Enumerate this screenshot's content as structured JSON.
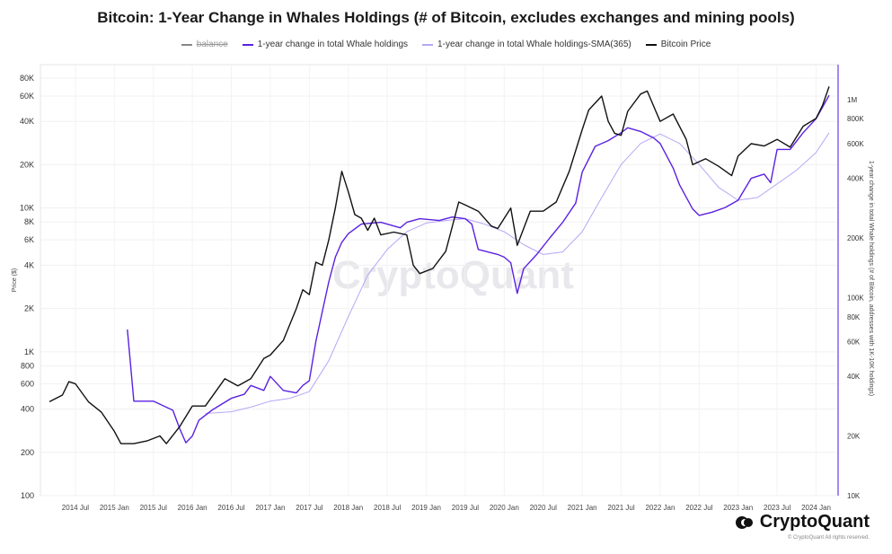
{
  "title": "Bitcoin: 1-Year Change in Whales Holdings (# of Bitcoin, excludes exchanges and mining pools)",
  "legend": [
    {
      "label": "balance",
      "color": "#888888",
      "hidden": true
    },
    {
      "label": "1-year change in total Whale holdings",
      "color": "#5b21e0",
      "hidden": false
    },
    {
      "label": "1-year change in total Whale holdings-SMA(365)",
      "color": "#b7a6f5",
      "hidden": false
    },
    {
      "label": "Bitcoin Price",
      "color": "#111111",
      "hidden": false
    }
  ],
  "watermark": "CryptoQuant",
  "brand": {
    "name": "CryptoQuant",
    "copyright": "© CryptoQuant All rights reserved."
  },
  "chart_data": {
    "type": "line",
    "title": "Bitcoin: 1-Year Change in Whales Holdings (# of Bitcoin, excludes exchanges and mining pools)",
    "ylabel_left": "Price ($)",
    "ylabel_right": "1-year change in total Whale holdings (# of Bitcoin, addresses with 1K-10K holdings)",
    "y_left_scale": "log",
    "y_right_scale": "log",
    "y_left_range": [
      100,
      80000
    ],
    "y_right_range": [
      10000,
      1500000
    ],
    "y_left_ticks": [
      "80K",
      "60K",
      "40K",
      "20K",
      "10K",
      "8K",
      "6K",
      "4K",
      "2K",
      "1K",
      "800",
      "600",
      "400",
      "200",
      "100"
    ],
    "y_right_ticks": [
      "1M",
      "800K",
      "600K",
      "400K",
      "200K",
      "100K",
      "80K",
      "60K",
      "40K",
      "20K",
      "10K"
    ],
    "x_ticks": [
      "2014 Jul",
      "2015 Jan",
      "2015 Jul",
      "2016 Jan",
      "2016 Jul",
      "2017 Jan",
      "2017 Jul",
      "2018 Jan",
      "2018 Jul",
      "2019 Jan",
      "2019 Jul",
      "2020 Jan",
      "2020 Jul",
      "2021 Jan",
      "2021 Jul",
      "2022 Jan",
      "2022 Jul",
      "2023 Jan",
      "2023 Jul",
      "2024 Jan"
    ],
    "x_range": [
      "2014-03",
      "2024-03"
    ],
    "grid": true,
    "series": [
      {
        "name": "Bitcoin Price",
        "axis": "left",
        "color": "#111111",
        "points": [
          [
            "2014-03",
            450
          ],
          [
            "2014-05",
            500
          ],
          [
            "2014-06",
            620
          ],
          [
            "2014-07",
            600
          ],
          [
            "2014-09",
            450
          ],
          [
            "2014-11",
            380
          ],
          [
            "2015-01",
            280
          ],
          [
            "2015-02",
            230
          ],
          [
            "2015-04",
            230
          ],
          [
            "2015-06",
            240
          ],
          [
            "2015-08",
            260
          ],
          [
            "2015-09",
            230
          ],
          [
            "2015-11",
            300
          ],
          [
            "2016-01",
            420
          ],
          [
            "2016-03",
            420
          ],
          [
            "2016-06",
            650
          ],
          [
            "2016-08",
            580
          ],
          [
            "2016-10",
            650
          ],
          [
            "2016-12",
            900
          ],
          [
            "2017-01",
            950
          ],
          [
            "2017-03",
            1200
          ],
          [
            "2017-05",
            2000
          ],
          [
            "2017-06",
            2700
          ],
          [
            "2017-07",
            2500
          ],
          [
            "2017-08",
            4200
          ],
          [
            "2017-09",
            4000
          ],
          [
            "2017-10",
            6000
          ],
          [
            "2017-11",
            10000
          ],
          [
            "2017-12",
            18000
          ],
          [
            "2018-01",
            13000
          ],
          [
            "2018-02",
            9000
          ],
          [
            "2018-03",
            8500
          ],
          [
            "2018-04",
            7000
          ],
          [
            "2018-05",
            8500
          ],
          [
            "2018-06",
            6500
          ],
          [
            "2018-08",
            6800
          ],
          [
            "2018-10",
            6500
          ],
          [
            "2018-11",
            4000
          ],
          [
            "2018-12",
            3500
          ],
          [
            "2019-02",
            3800
          ],
          [
            "2019-04",
            5000
          ],
          [
            "2019-06",
            11000
          ],
          [
            "2019-07",
            10500
          ],
          [
            "2019-09",
            9500
          ],
          [
            "2019-11",
            7500
          ],
          [
            "2019-12",
            7200
          ],
          [
            "2020-02",
            10000
          ],
          [
            "2020-03",
            5500
          ],
          [
            "2020-05",
            9500
          ],
          [
            "2020-07",
            9500
          ],
          [
            "2020-09",
            11000
          ],
          [
            "2020-11",
            18000
          ],
          [
            "2021-01",
            35000
          ],
          [
            "2021-02",
            48000
          ],
          [
            "2021-04",
            60000
          ],
          [
            "2021-05",
            40000
          ],
          [
            "2021-06",
            33000
          ],
          [
            "2021-07",
            32000
          ],
          [
            "2021-08",
            47000
          ],
          [
            "2021-10",
            62000
          ],
          [
            "2021-11",
            65000
          ],
          [
            "2022-01",
            40000
          ],
          [
            "2022-03",
            45000
          ],
          [
            "2022-05",
            30000
          ],
          [
            "2022-06",
            20000
          ],
          [
            "2022-08",
            22000
          ],
          [
            "2022-10",
            19500
          ],
          [
            "2022-12",
            16800
          ],
          [
            "2023-01",
            23000
          ],
          [
            "2023-03",
            28000
          ],
          [
            "2023-05",
            27000
          ],
          [
            "2023-07",
            30000
          ],
          [
            "2023-09",
            26500
          ],
          [
            "2023-11",
            37000
          ],
          [
            "2024-01",
            42000
          ],
          [
            "2024-02",
            52000
          ],
          [
            "2024-03",
            70000
          ]
        ]
      },
      {
        "name": "1-year change in total Whale holdings",
        "axis": "right",
        "color": "#5b21e0",
        "points": [
          [
            "2015-03",
            69000
          ],
          [
            "2015-04",
            30000
          ],
          [
            "2015-07",
            30000
          ],
          [
            "2015-10",
            27000
          ],
          [
            "2015-11",
            22000
          ],
          [
            "2015-12",
            18500
          ],
          [
            "2016-01",
            20000
          ],
          [
            "2016-02",
            24000
          ],
          [
            "2016-04",
            27000
          ],
          [
            "2016-07",
            31000
          ],
          [
            "2016-09",
            32500
          ],
          [
            "2016-10",
            36000
          ],
          [
            "2016-12",
            34000
          ],
          [
            "2017-01",
            40000
          ],
          [
            "2017-03",
            34000
          ],
          [
            "2017-05",
            33000
          ],
          [
            "2017-06",
            36000
          ],
          [
            "2017-07",
            38000
          ],
          [
            "2017-08",
            60000
          ],
          [
            "2017-09",
            85000
          ],
          [
            "2017-10",
            120000
          ],
          [
            "2017-11",
            160000
          ],
          [
            "2017-12",
            190000
          ],
          [
            "2018-01",
            210000
          ],
          [
            "2018-03",
            235000
          ],
          [
            "2018-06",
            240000
          ],
          [
            "2018-09",
            225000
          ],
          [
            "2018-10",
            240000
          ],
          [
            "2018-12",
            250000
          ],
          [
            "2019-03",
            245000
          ],
          [
            "2019-05",
            255000
          ],
          [
            "2019-07",
            250000
          ],
          [
            "2019-08",
            235000
          ],
          [
            "2019-09",
            175000
          ],
          [
            "2019-12",
            165000
          ],
          [
            "2020-01",
            160000
          ],
          [
            "2020-02",
            150000
          ],
          [
            "2020-03",
            105000
          ],
          [
            "2020-04",
            140000
          ],
          [
            "2020-06",
            165000
          ],
          [
            "2020-08",
            200000
          ],
          [
            "2020-10",
            240000
          ],
          [
            "2020-12",
            300000
          ],
          [
            "2021-01",
            430000
          ],
          [
            "2021-03",
            580000
          ],
          [
            "2021-05",
            620000
          ],
          [
            "2021-07",
            680000
          ],
          [
            "2021-08",
            720000
          ],
          [
            "2021-10",
            690000
          ],
          [
            "2021-12",
            640000
          ],
          [
            "2022-01",
            600000
          ],
          [
            "2022-03",
            450000
          ],
          [
            "2022-04",
            370000
          ],
          [
            "2022-06",
            280000
          ],
          [
            "2022-07",
            260000
          ],
          [
            "2022-09",
            270000
          ],
          [
            "2022-11",
            285000
          ],
          [
            "2023-01",
            310000
          ],
          [
            "2023-03",
            400000
          ],
          [
            "2023-05",
            420000
          ],
          [
            "2023-06",
            380000
          ],
          [
            "2023-07",
            560000
          ],
          [
            "2023-09",
            560000
          ],
          [
            "2023-11",
            680000
          ],
          [
            "2024-01",
            800000
          ],
          [
            "2024-03",
            1050000
          ]
        ]
      },
      {
        "name": "1-year change in total Whale holdings-SMA(365)",
        "axis": "right",
        "color": "#b7a6f5",
        "points": [
          [
            "2016-03",
            26000
          ],
          [
            "2016-07",
            26500
          ],
          [
            "2016-10",
            28000
          ],
          [
            "2017-01",
            30000
          ],
          [
            "2017-04",
            31000
          ],
          [
            "2017-07",
            33500
          ],
          [
            "2017-10",
            48000
          ],
          [
            "2018-01",
            80000
          ],
          [
            "2018-04",
            130000
          ],
          [
            "2018-07",
            175000
          ],
          [
            "2018-10",
            215000
          ],
          [
            "2019-01",
            238000
          ],
          [
            "2019-04",
            245000
          ],
          [
            "2019-07",
            250000
          ],
          [
            "2019-10",
            235000
          ],
          [
            "2020-01",
            215000
          ],
          [
            "2020-04",
            185000
          ],
          [
            "2020-07",
            165000
          ],
          [
            "2020-10",
            170000
          ],
          [
            "2021-01",
            215000
          ],
          [
            "2021-04",
            320000
          ],
          [
            "2021-07",
            470000
          ],
          [
            "2021-10",
            600000
          ],
          [
            "2022-01",
            670000
          ],
          [
            "2022-04",
            600000
          ],
          [
            "2022-07",
            470000
          ],
          [
            "2022-10",
            360000
          ],
          [
            "2023-01",
            310000
          ],
          [
            "2023-04",
            320000
          ],
          [
            "2023-07",
            375000
          ],
          [
            "2023-10",
            440000
          ],
          [
            "2024-01",
            540000
          ],
          [
            "2024-03",
            680000
          ]
        ]
      }
    ]
  }
}
